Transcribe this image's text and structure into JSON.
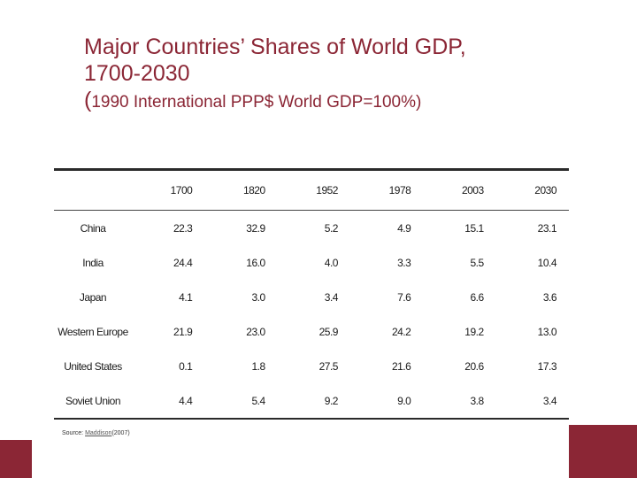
{
  "title": {
    "line1": "Major Countries’ Shares of World GDP,",
    "line2": "1700-2030",
    "line3_paren_open": "(",
    "line3_text": "1990 International PPP$  World GDP=100%",
    "line3_paren_close": ")"
  },
  "table": {
    "headers": [
      "",
      "1700",
      "1820",
      "1952",
      "1978",
      "2003",
      "2030"
    ],
    "rows": [
      {
        "country": "China",
        "values": [
          "22.3",
          "32.9",
          "5.2",
          "4.9",
          "15.1",
          "23.1"
        ]
      },
      {
        "country": "India",
        "values": [
          "24.4",
          "16.0",
          "4.0",
          "3.3",
          "5.5",
          "10.4"
        ]
      },
      {
        "country": "Japan",
        "values": [
          "4.1",
          "3.0",
          "3.4",
          "7.6",
          "6.6",
          "3.6"
        ]
      },
      {
        "country": "Western Europe",
        "values": [
          "21.9",
          "23.0",
          "25.9",
          "24.2",
          "19.2",
          "13.0"
        ]
      },
      {
        "country": "United States",
        "values": [
          "0.1",
          "1.8",
          "27.5",
          "21.6",
          "20.6",
          "17.3"
        ]
      },
      {
        "country": "Soviet Union",
        "values": [
          "4.4",
          "5.4",
          "9.2",
          "9.0",
          "3.8",
          "3.4"
        ]
      }
    ]
  },
  "source": {
    "label": "Source:",
    "author": "Maddison",
    "year": "(2007)"
  },
  "colors": {
    "accent": "#8b2635"
  }
}
